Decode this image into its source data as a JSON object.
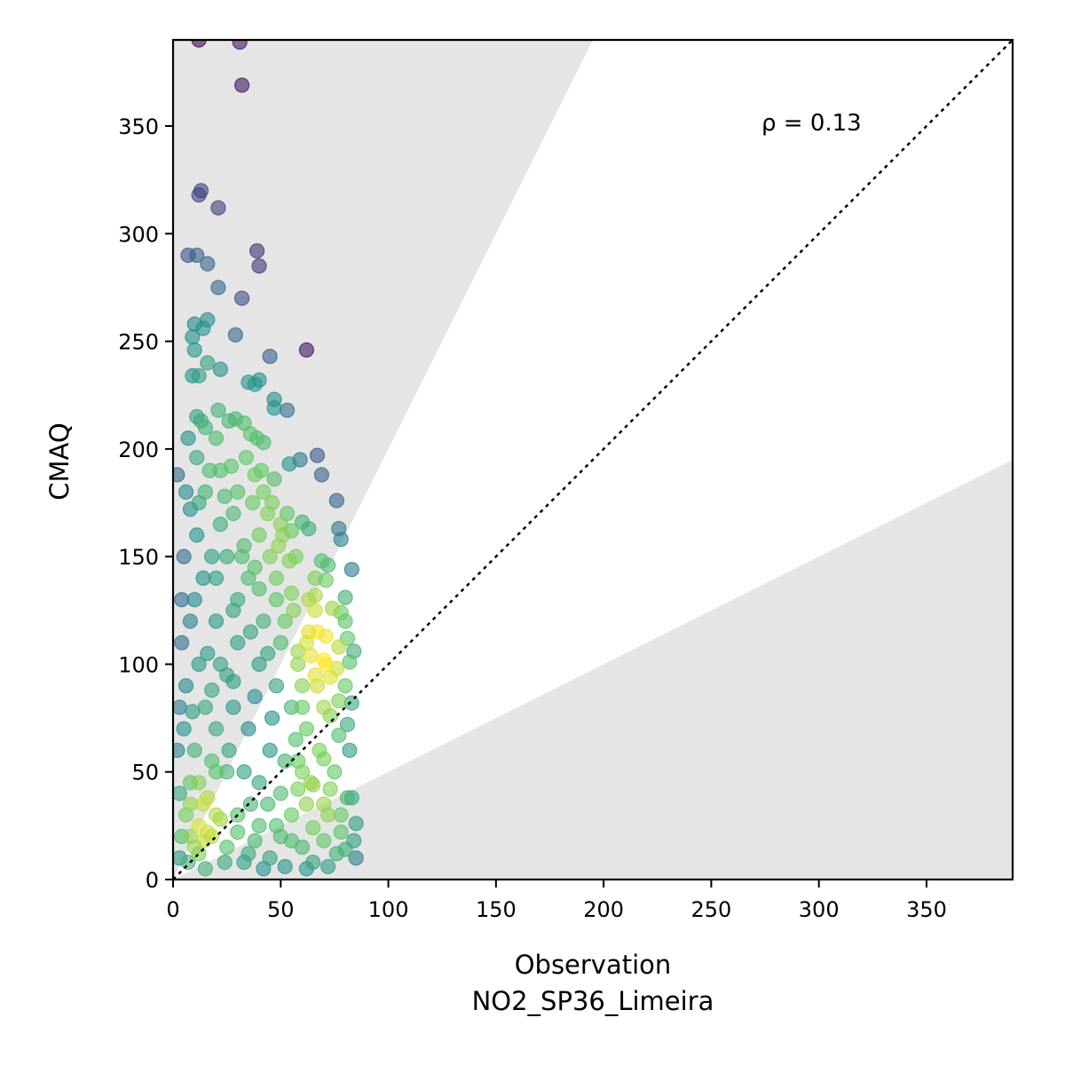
{
  "chart_data": {
    "type": "scatter",
    "title": "",
    "xlabel": "Observation",
    "xlabel_sub": "NO2_SP36_Limeira",
    "ylabel": "CMAQ",
    "xlim": [
      0,
      390
    ],
    "ylim": [
      0,
      390
    ],
    "xticks": [
      0,
      50,
      100,
      150,
      200,
      250,
      300,
      350
    ],
    "yticks": [
      0,
      50,
      100,
      150,
      200,
      250,
      300,
      350
    ],
    "grid": false,
    "legend": "none",
    "annotation": "ρ = 0.13",
    "reference_line": {
      "style": "dotted",
      "color": "#000000",
      "slope": 1
    },
    "shaded_region_color": "#e5e5e5",
    "shaded_bands": [
      {
        "from_slope": 2,
        "to_slope": "inf"
      },
      {
        "from_slope": 0,
        "to_slope": 0.5
      }
    ],
    "colormap": "viridis",
    "colormap_stops": [
      "#440154",
      "#3b528b",
      "#21918c",
      "#5ec962",
      "#fde725"
    ],
    "marker_alpha": 0.6,
    "points": [
      [
        12,
        390
      ],
      [
        31,
        389
      ],
      [
        32,
        369
      ],
      [
        13,
        320
      ],
      [
        12,
        318
      ],
      [
        21,
        312
      ],
      [
        39,
        292
      ],
      [
        7,
        290
      ],
      [
        11,
        290
      ],
      [
        40,
        285
      ],
      [
        16,
        286
      ],
      [
        21,
        275
      ],
      [
        32,
        270
      ],
      [
        10,
        258
      ],
      [
        14,
        256
      ],
      [
        16,
        260
      ],
      [
        29,
        253
      ],
      [
        9,
        252
      ],
      [
        10,
        246
      ],
      [
        62,
        246
      ],
      [
        45,
        243
      ],
      [
        16,
        240
      ],
      [
        22,
        237
      ],
      [
        9,
        234
      ],
      [
        12,
        234
      ],
      [
        38,
        230
      ],
      [
        40,
        232
      ],
      [
        35,
        231
      ],
      [
        47,
        223
      ],
      [
        47,
        219
      ],
      [
        53,
        218
      ],
      [
        11,
        215
      ],
      [
        13,
        213
      ],
      [
        21,
        218
      ],
      [
        26,
        213
      ],
      [
        29,
        214
      ],
      [
        33,
        212
      ],
      [
        7,
        205
      ],
      [
        15,
        210
      ],
      [
        20,
        205
      ],
      [
        36,
        207
      ],
      [
        39,
        205
      ],
      [
        42,
        203
      ],
      [
        11,
        196
      ],
      [
        34,
        196
      ],
      [
        59,
        195
      ],
      [
        54,
        193
      ],
      [
        41,
        190
      ],
      [
        38,
        188
      ],
      [
        67,
        197
      ],
      [
        69,
        188
      ],
      [
        47,
        186
      ],
      [
        2,
        188
      ],
      [
        22,
        190
      ],
      [
        27,
        192
      ],
      [
        76,
        176
      ],
      [
        60,
        166
      ],
      [
        63,
        163
      ],
      [
        77,
        163
      ],
      [
        55,
        162
      ],
      [
        78,
        158
      ],
      [
        51,
        160
      ],
      [
        49,
        155
      ],
      [
        83,
        144
      ],
      [
        69,
        148
      ],
      [
        72,
        146
      ],
      [
        54,
        148
      ],
      [
        66,
        140
      ],
      [
        71,
        139
      ],
      [
        55,
        133
      ],
      [
        80,
        131
      ],
      [
        66,
        132
      ],
      [
        66,
        125
      ],
      [
        74,
        126
      ],
      [
        78,
        124
      ],
      [
        80,
        120
      ],
      [
        63,
        115
      ],
      [
        71,
        113
      ],
      [
        81,
        112
      ],
      [
        77,
        108
      ],
      [
        84,
        106
      ],
      [
        70,
        102
      ],
      [
        64,
        104
      ],
      [
        82,
        101
      ],
      [
        58,
        106
      ],
      [
        76,
        98
      ],
      [
        73,
        94
      ],
      [
        80,
        90
      ],
      [
        67,
        90
      ],
      [
        77,
        83
      ],
      [
        83,
        82
      ],
      [
        60,
        80
      ],
      [
        70,
        80
      ],
      [
        73,
        76
      ],
      [
        81,
        72
      ],
      [
        77,
        67
      ],
      [
        62,
        70
      ],
      [
        82,
        60
      ],
      [
        70,
        56
      ],
      [
        75,
        50
      ],
      [
        73,
        42
      ],
      [
        83,
        38
      ],
      [
        81,
        38
      ],
      [
        65,
        44
      ],
      [
        58,
        42
      ],
      [
        85,
        26
      ],
      [
        78,
        22
      ],
      [
        84,
        18
      ],
      [
        80,
        14
      ],
      [
        85,
        10
      ],
      [
        70,
        18
      ],
      [
        65,
        24
      ],
      [
        72,
        30
      ],
      [
        76,
        12
      ],
      [
        78,
        30
      ],
      [
        15,
        180
      ],
      [
        28,
        170
      ],
      [
        40,
        160
      ],
      [
        45,
        150
      ],
      [
        8,
        172
      ],
      [
        22,
        165
      ],
      [
        35,
        140
      ],
      [
        48,
        130
      ],
      [
        52,
        120
      ],
      [
        30,
        130
      ],
      [
        18,
        150
      ],
      [
        42,
        120
      ],
      [
        58,
        100
      ],
      [
        60,
        90
      ],
      [
        55,
        80
      ],
      [
        48,
        90
      ],
      [
        40,
        100
      ],
      [
        30,
        110
      ],
      [
        25,
        95
      ],
      [
        20,
        120
      ],
      [
        10,
        130
      ],
      [
        5,
        150
      ],
      [
        4,
        110
      ],
      [
        6,
        90
      ],
      [
        12,
        100
      ],
      [
        15,
        80
      ],
      [
        20,
        70
      ],
      [
        28,
        80
      ],
      [
        35,
        70
      ],
      [
        45,
        60
      ],
      [
        52,
        55
      ],
      [
        60,
        50
      ],
      [
        50,
        40
      ],
      [
        40,
        45
      ],
      [
        33,
        50
      ],
      [
        25,
        50
      ],
      [
        18,
        55
      ],
      [
        10,
        60
      ],
      [
        8,
        45
      ],
      [
        14,
        35
      ],
      [
        20,
        30
      ],
      [
        30,
        30
      ],
      [
        40,
        25
      ],
      [
        50,
        20
      ],
      [
        60,
        15
      ],
      [
        65,
        8
      ],
      [
        45,
        10
      ],
      [
        35,
        12
      ],
      [
        25,
        15
      ],
      [
        18,
        20
      ],
      [
        12,
        25
      ],
      [
        10,
        15
      ],
      [
        8,
        20
      ],
      [
        14,
        18
      ],
      [
        12,
        12
      ],
      [
        16,
        22
      ],
      [
        6,
        30
      ],
      [
        3,
        40
      ],
      [
        2,
        60
      ],
      [
        3,
        80
      ],
      [
        30,
        180
      ],
      [
        37,
        175
      ],
      [
        44,
        170
      ],
      [
        50,
        165
      ],
      [
        25,
        150
      ],
      [
        33,
        155
      ],
      [
        38,
        145
      ],
      [
        16,
        105
      ],
      [
        22,
        100
      ],
      [
        8,
        120
      ],
      [
        18,
        88
      ],
      [
        26,
        60
      ],
      [
        36,
        35
      ],
      [
        44,
        35
      ],
      [
        55,
        30
      ],
      [
        62,
        35
      ],
      [
        68,
        60
      ],
      [
        57,
        65
      ],
      [
        46,
        75
      ],
      [
        38,
        85
      ],
      [
        28,
        92
      ],
      [
        20,
        50
      ],
      [
        12,
        45
      ],
      [
        5,
        70
      ],
      [
        9,
        78
      ],
      [
        14,
        140
      ],
      [
        11,
        160
      ],
      [
        20,
        140
      ],
      [
        28,
        125
      ],
      [
        36,
        115
      ],
      [
        44,
        105
      ],
      [
        50,
        110
      ],
      [
        56,
        125
      ],
      [
        62,
        110
      ],
      [
        66,
        95
      ],
      [
        48,
        140
      ],
      [
        40,
        135
      ],
      [
        32,
        150
      ],
      [
        24,
        178
      ],
      [
        17,
        190
      ],
      [
        12,
        175
      ],
      [
        6,
        180
      ],
      [
        4,
        130
      ],
      [
        42,
        180
      ],
      [
        46,
        175
      ],
      [
        53,
        170
      ],
      [
        57,
        150
      ],
      [
        63,
        130
      ],
      [
        67,
        115
      ],
      [
        71,
        100
      ],
      [
        58,
        55
      ],
      [
        64,
        45
      ],
      [
        70,
        35
      ],
      [
        55,
        18
      ],
      [
        48,
        25
      ],
      [
        38,
        18
      ],
      [
        30,
        22
      ],
      [
        22,
        28
      ],
      [
        16,
        38
      ],
      [
        8,
        35
      ],
      [
        4,
        20
      ],
      [
        3,
        10
      ],
      [
        7,
        8
      ],
      [
        15,
        5
      ],
      [
        24,
        8
      ],
      [
        33,
        8
      ],
      [
        42,
        5
      ],
      [
        52,
        6
      ],
      [
        62,
        5
      ],
      [
        72,
        6
      ]
    ]
  }
}
